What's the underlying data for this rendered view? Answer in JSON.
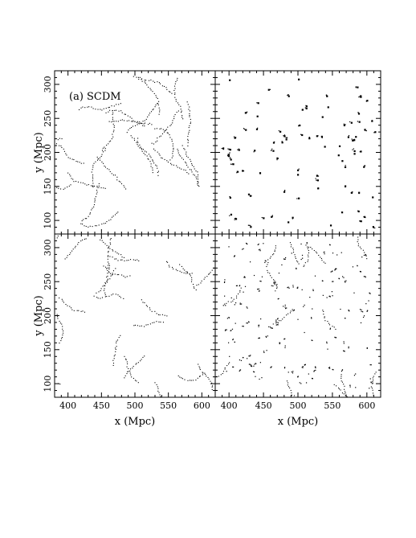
{
  "chart_data": {
    "type": "scatter",
    "layout": "2x2 grid, shared axes",
    "xlabel": "x (Mpc)",
    "ylabel": "y (Mpc)",
    "xlim": [
      380,
      620
    ],
    "ylim": [
      80,
      320
    ],
    "xticks": [
      400,
      450,
      500,
      550,
      600
    ],
    "yticks": [
      100,
      150,
      200,
      250,
      300
    ],
    "xtick_labels": [
      "400",
      "450",
      "500",
      "550",
      "600"
    ],
    "ytick_labels": [
      "100",
      "150",
      "200",
      "250",
      "300"
    ],
    "panels": [
      {
        "position": "top-left",
        "label": "(a) SCDM",
        "style": "filamentary",
        "points": 520,
        "seed": 11
      },
      {
        "position": "top-right",
        "label": "",
        "style": "clustered",
        "points": 90,
        "seed": 23
      },
      {
        "position": "bottom-left",
        "label": "",
        "style": "filamentary",
        "points": 380,
        "seed": 37
      },
      {
        "position": "bottom-right",
        "label": "",
        "style": "mixed",
        "points": 170,
        "seed": 53
      }
    ],
    "grid": false,
    "legend": "none"
  },
  "colors": {
    "points": "#000000",
    "background": "#ffffff",
    "axes": "#000000"
  }
}
